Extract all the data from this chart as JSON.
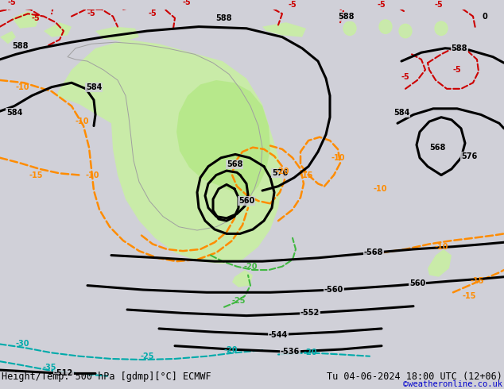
{
  "title_left": "Height/Temp. 500 hPa [gdmp][°C] ECMWF",
  "title_right": "Tu 04-06-2024 18:00 UTC (12+06)",
  "credit": "©weatheronline.co.uk",
  "background_color": "#d0d0d8",
  "green_fill_color": "#c8f0a0",
  "green_fill_color2": "#b0e880",
  "orange_color": "#ff8c00",
  "red_color": "#cc0000",
  "cyan_color": "#00aaaa",
  "green_contour_color": "#40b840",
  "font_size_title": 8.5,
  "font_size_credit": 7.5,
  "font_size_label": 7
}
